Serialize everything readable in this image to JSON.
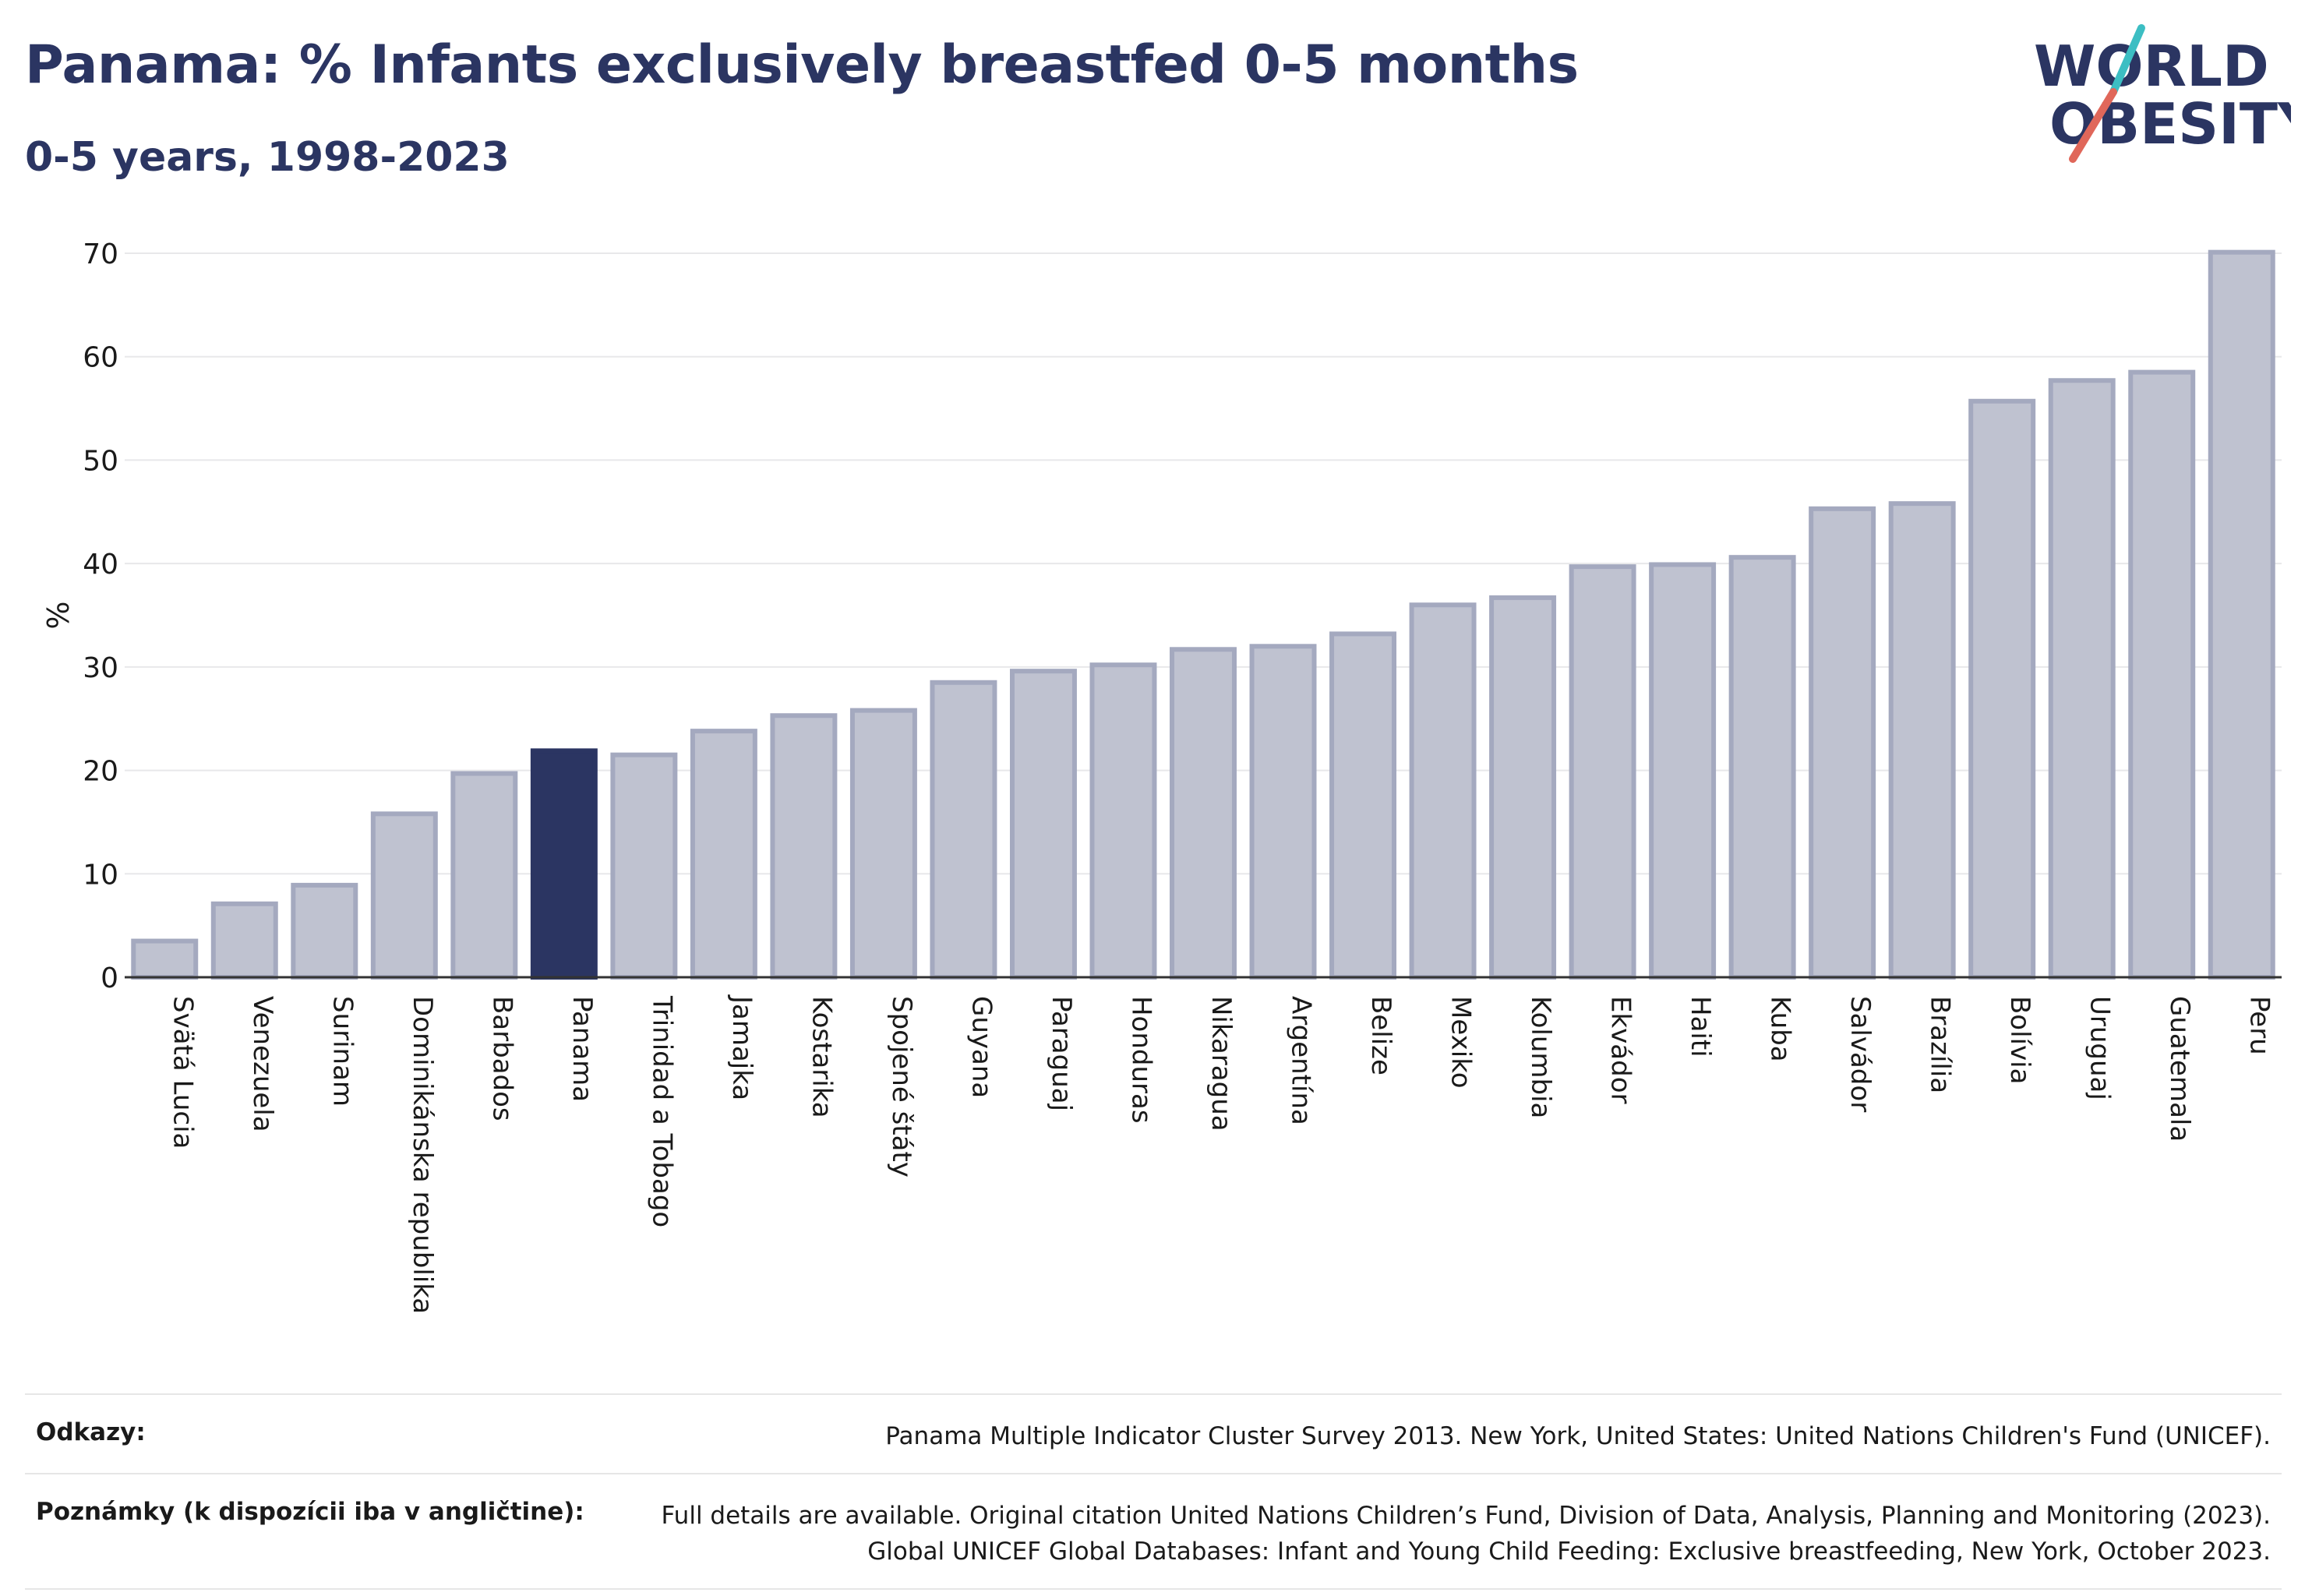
{
  "title": "Panama: % Infants exclusively breastfed 0-5 months",
  "subtitle": "0-5 years, 1998-2023",
  "logo": {
    "line1": "WORLD",
    "line2": "OBESITY"
  },
  "colors": {
    "bar": "#bfc2d0",
    "bar_stroke": "#a4a9bf",
    "highlight": "#2b3562",
    "title": "#2b3562",
    "logo_teal": "#3cbec3",
    "logo_red": "#e0675a"
  },
  "chart_data": {
    "type": "bar",
    "ylabel": "%",
    "ylim": [
      0,
      70
    ],
    "yticks": [
      0,
      10,
      20,
      30,
      40,
      50,
      60,
      70
    ],
    "grid": true,
    "highlight": "Panama",
    "categories": [
      "Svätá Lucia",
      "Venezuela",
      "Surinam",
      "Dominikánska republika",
      "Barbados",
      "Panama",
      "Trinidad a Tobago",
      "Jamajka",
      "Kostarika",
      "Spojené štáty",
      "Guyana",
      "Paraguaj",
      "Honduras",
      "Nikaragua",
      "Argentína",
      "Belize",
      "Mexiko",
      "Kolumbia",
      "Ekvádor",
      "Haiti",
      "Kuba",
      "Salvádor",
      "Brazília",
      "Bolívia",
      "Uruguaj",
      "Guatemala",
      "Peru"
    ],
    "values": [
      3.5,
      7.1,
      8.9,
      15.8,
      19.7,
      21.9,
      21.5,
      23.8,
      25.3,
      25.8,
      28.5,
      29.6,
      30.2,
      31.7,
      32.0,
      33.2,
      36.0,
      36.7,
      39.7,
      39.9,
      40.6,
      45.3,
      45.8,
      55.7,
      57.7,
      58.5,
      70.1
    ]
  },
  "footer": {
    "sources_label": "Odkazy:",
    "sources_text": "Panama Multiple Indicator Cluster Survey 2013. New York, United States: United Nations Children's Fund (UNICEF).",
    "notes_label": "Poznámky (k dispozícii iba v angličtine):",
    "notes_line1": "Full details are available. Original citation United Nations Children’s Fund, Division of Data, Analysis, Planning and Monitoring (2023).",
    "notes_line2": "Global UNICEF Global Databases: Infant and Young Child Feeding: Exclusive breastfeeding, New York, October 2023."
  }
}
